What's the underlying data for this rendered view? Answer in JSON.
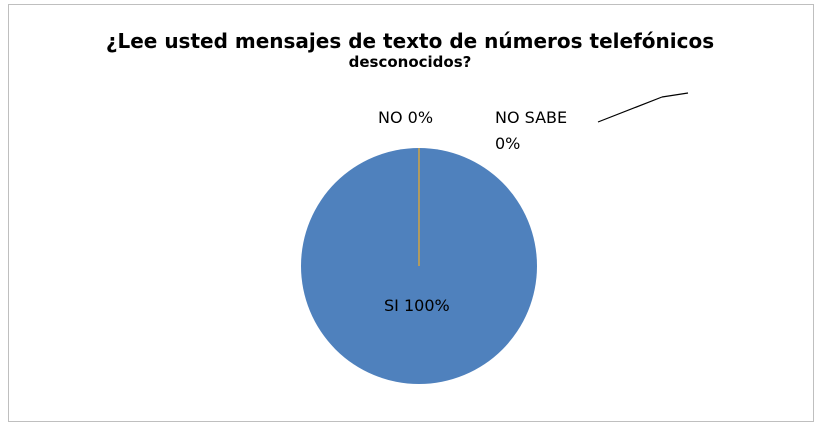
{
  "chart_data": {
    "type": "pie",
    "title_line1": "¿Lee usted mensajes de texto de números telefónicos",
    "title_line2": "desconocidos?",
    "categories": [
      "SI",
      "NO",
      "NO SABE"
    ],
    "values": [
      100,
      0,
      0
    ],
    "data_labels": [
      {
        "name": "SI",
        "value": "100%"
      },
      {
        "name": "NO",
        "value": "0%"
      },
      {
        "name": "NO SABE",
        "value": "0%"
      }
    ],
    "colors": [
      "#4f81bd",
      "#c0504d",
      "#9bbb59"
    ],
    "legend": "none"
  }
}
